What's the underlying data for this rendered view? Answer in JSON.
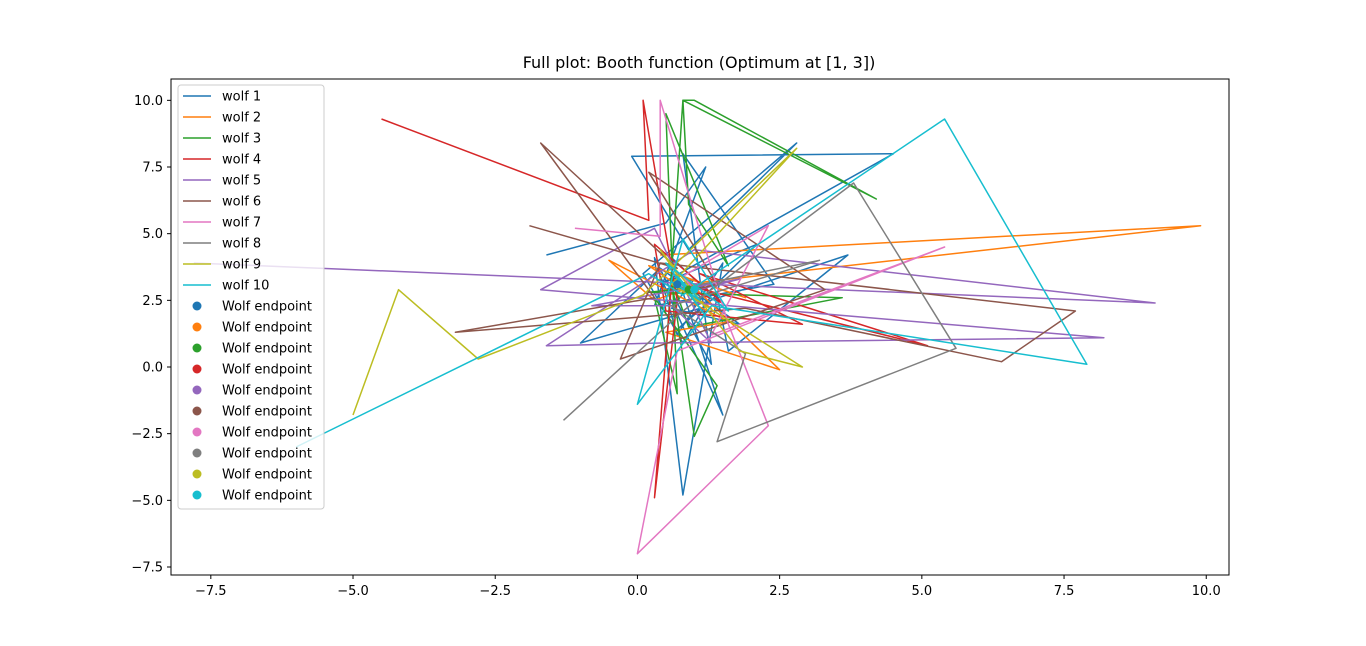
{
  "chart_data": {
    "type": "line",
    "title": "Full plot: Booth function (Optimum at [1, 3])",
    "xlabel": "",
    "ylabel": "",
    "xlim": [
      -8.2,
      10.4
    ],
    "ylim": [
      -7.8,
      10.8
    ],
    "x_ticks": [
      -7.5,
      -5.0,
      -2.5,
      0.0,
      2.5,
      5.0,
      7.5,
      10.0
    ],
    "x_tick_labels": [
      "−7.5",
      "−5.0",
      "−2.5",
      "0.0",
      "2.5",
      "5.0",
      "7.5",
      "10.0"
    ],
    "y_ticks": [
      -7.5,
      -5.0,
      -2.5,
      0.0,
      2.5,
      5.0,
      7.5,
      10.0
    ],
    "y_tick_labels": [
      "−7.5",
      "−5.0",
      "−2.5",
      "0.0",
      "2.5",
      "5.0",
      "7.5",
      "10.0"
    ],
    "grid": false,
    "legend_position": "upper-left",
    "series": [
      {
        "name": "wolf 1",
        "color": "#1f77b4",
        "x": [
          -1.6,
          0.5,
          1.2,
          0.3,
          2.4,
          0.8,
          1.3,
          0.7,
          0.3,
          0.8,
          1.5,
          0.7,
          0.4,
          1.5,
          0.6,
          1.3,
          0.8,
          0.1,
          2.8,
          0.9,
          -0.1,
          4.5,
          0.4,
          2.1,
          1.0,
          3.7,
          1.6,
          1.4,
          0.7,
          1.1,
          -1.0,
          0.4,
          1.8,
          0.6,
          1.0,
          0.5,
          0.7
        ],
        "y": [
          4.2,
          5.4,
          7.5,
          2.3,
          3.1,
          8.0,
          0.1,
          2.4,
          4.1,
          -4.8,
          3.9,
          1.2,
          3.4,
          -1.8,
          4.1,
          2.7,
          0.9,
          3.5,
          8.4,
          4.4,
          7.9,
          8.0,
          3.1,
          4.6,
          2.3,
          4.2,
          0.6,
          2.7,
          1.4,
          2.2,
          0.9,
          3.7,
          1.6,
          2.2,
          3.3,
          2.9,
          3.1
        ]
      },
      {
        "name": "wolf 2",
        "color": "#ff7f0e",
        "x": [
          0.4,
          9.9,
          1.2,
          0.3,
          -0.5,
          1.6,
          0.5,
          2.5,
          0.8,
          1.9,
          0.2,
          1.3,
          0.7,
          0.9
        ],
        "y": [
          4.2,
          5.3,
          3.2,
          2.5,
          4.0,
          1.7,
          1.3,
          -0.1,
          3.4,
          2.6,
          3.8,
          2.2,
          3.0,
          2.9
        ]
      },
      {
        "name": "wolf 3",
        "color": "#2ca02c",
        "x": [
          0.5,
          0.8,
          1.0,
          4.2,
          0.8,
          0.9,
          1.6,
          0.5,
          0.7,
          0.3,
          1.4,
          1.0,
          0.6,
          0.9,
          3.6,
          0.2,
          1.1,
          0.9
        ],
        "y": [
          0.4,
          10.0,
          10.0,
          6.3,
          10.0,
          6.1,
          3.8,
          9.5,
          -1.0,
          2.6,
          -0.7,
          -2.6,
          3.3,
          1.5,
          2.6,
          2.8,
          3.0,
          2.9
        ]
      },
      {
        "name": "wolf 4",
        "color": "#d62728",
        "x": [
          -4.5,
          0.2,
          0.1,
          0.7,
          0.3,
          0.6,
          5.1,
          1.1,
          2.9,
          0.5,
          0.3,
          1.5,
          0.8,
          1.0
        ],
        "y": [
          9.3,
          5.5,
          10.0,
          2.5,
          -4.9,
          3.2,
          0.8,
          3.5,
          1.6,
          2.1,
          4.6,
          2.4,
          3.0,
          2.9
        ]
      },
      {
        "name": "wolf 5",
        "color": "#9467bd",
        "x": [
          -7.8,
          9.1,
          1.0,
          -1.6,
          0.4,
          8.2,
          -1.7,
          0.3,
          1.3,
          0.6,
          -0.8,
          1.8,
          0.9,
          1.0
        ],
        "y": [
          3.9,
          2.4,
          4.4,
          0.8,
          0.9,
          1.1,
          2.9,
          5.2,
          0.9,
          2.3,
          2.3,
          3.3,
          2.8,
          2.9
        ]
      },
      {
        "name": "wolf 6",
        "color": "#8c564b",
        "x": [
          -1.9,
          0.7,
          -1.7,
          0.3,
          -3.2,
          1.9,
          6.4,
          7.7,
          0.4,
          -0.3,
          3.3,
          0.2,
          1.4,
          0.8,
          1.0
        ],
        "y": [
          5.3,
          3.7,
          8.4,
          2.6,
          1.3,
          2.2,
          0.2,
          2.1,
          3.9,
          0.3,
          2.9,
          7.3,
          3.1,
          2.8,
          2.9
        ]
      },
      {
        "name": "wolf 7",
        "color": "#e377c2",
        "x": [
          -1.1,
          0.4,
          0.4,
          1.6,
          2.3,
          0.0,
          0.7,
          5.4,
          1.3,
          2.3,
          0.8,
          1.0
        ],
        "y": [
          5.2,
          4.9,
          10.0,
          1.6,
          -2.2,
          -7.0,
          0.6,
          4.5,
          1.2,
          5.3,
          3.4,
          2.9
        ]
      },
      {
        "name": "wolf 8",
        "color": "#7f7f7f",
        "x": [
          -1.3,
          0.8,
          3.8,
          5.6,
          1.4,
          1.9,
          0.6,
          3.2,
          0.9,
          1.0
        ],
        "y": [
          -2.0,
          2.1,
          6.9,
          0.7,
          -2.8,
          0.5,
          2.3,
          4.0,
          3.0,
          2.9
        ]
      },
      {
        "name": "wolf 9",
        "color": "#bcbd22",
        "x": [
          -5.0,
          -4.2,
          -2.8,
          0.1,
          2.8,
          0.6,
          2.9,
          1.8,
          0.4,
          1.1,
          0.8,
          1.0
        ],
        "y": [
          -1.8,
          2.9,
          0.3,
          2.7,
          8.2,
          3.1,
          0.0,
          0.6,
          4.4,
          2.2,
          3.1,
          2.9
        ]
      },
      {
        "name": "wolf 10",
        "color": "#17becf",
        "x": [
          -6.0,
          0.2,
          0.8,
          5.4,
          7.9,
          1.3,
          0.0,
          0.8,
          1.6,
          0.5,
          1.2,
          0.7,
          1.1,
          0.6,
          0.9,
          1.0
        ],
        "y": [
          -3.0,
          3.5,
          2.7,
          9.3,
          0.1,
          2.3,
          -1.4,
          4.8,
          2.1,
          3.9,
          1.9,
          3.4,
          2.5,
          3.2,
          2.8,
          2.9
        ]
      }
    ],
    "endpoints": [
      {
        "name": "Wolf endpoint",
        "color": "#1f77b4",
        "x": 0.7,
        "y": 3.1
      },
      {
        "name": "Wolf endpoint",
        "color": "#ff7f0e",
        "x": 0.9,
        "y": 2.9
      },
      {
        "name": "Wolf endpoint",
        "color": "#2ca02c",
        "x": 0.9,
        "y": 2.9
      },
      {
        "name": "Wolf endpoint",
        "color": "#d62728",
        "x": 1.0,
        "y": 2.9
      },
      {
        "name": "Wolf endpoint",
        "color": "#9467bd",
        "x": 1.0,
        "y": 2.9
      },
      {
        "name": "Wolf endpoint",
        "color": "#8c564b",
        "x": 1.0,
        "y": 2.9
      },
      {
        "name": "Wolf endpoint",
        "color": "#e377c2",
        "x": 1.0,
        "y": 2.9
      },
      {
        "name": "Wolf endpoint",
        "color": "#7f7f7f",
        "x": 1.0,
        "y": 2.9
      },
      {
        "name": "Wolf endpoint",
        "color": "#bcbd22",
        "x": 1.0,
        "y": 2.9
      },
      {
        "name": "Wolf endpoint",
        "color": "#17becf",
        "x": 1.0,
        "y": 2.9
      }
    ]
  }
}
